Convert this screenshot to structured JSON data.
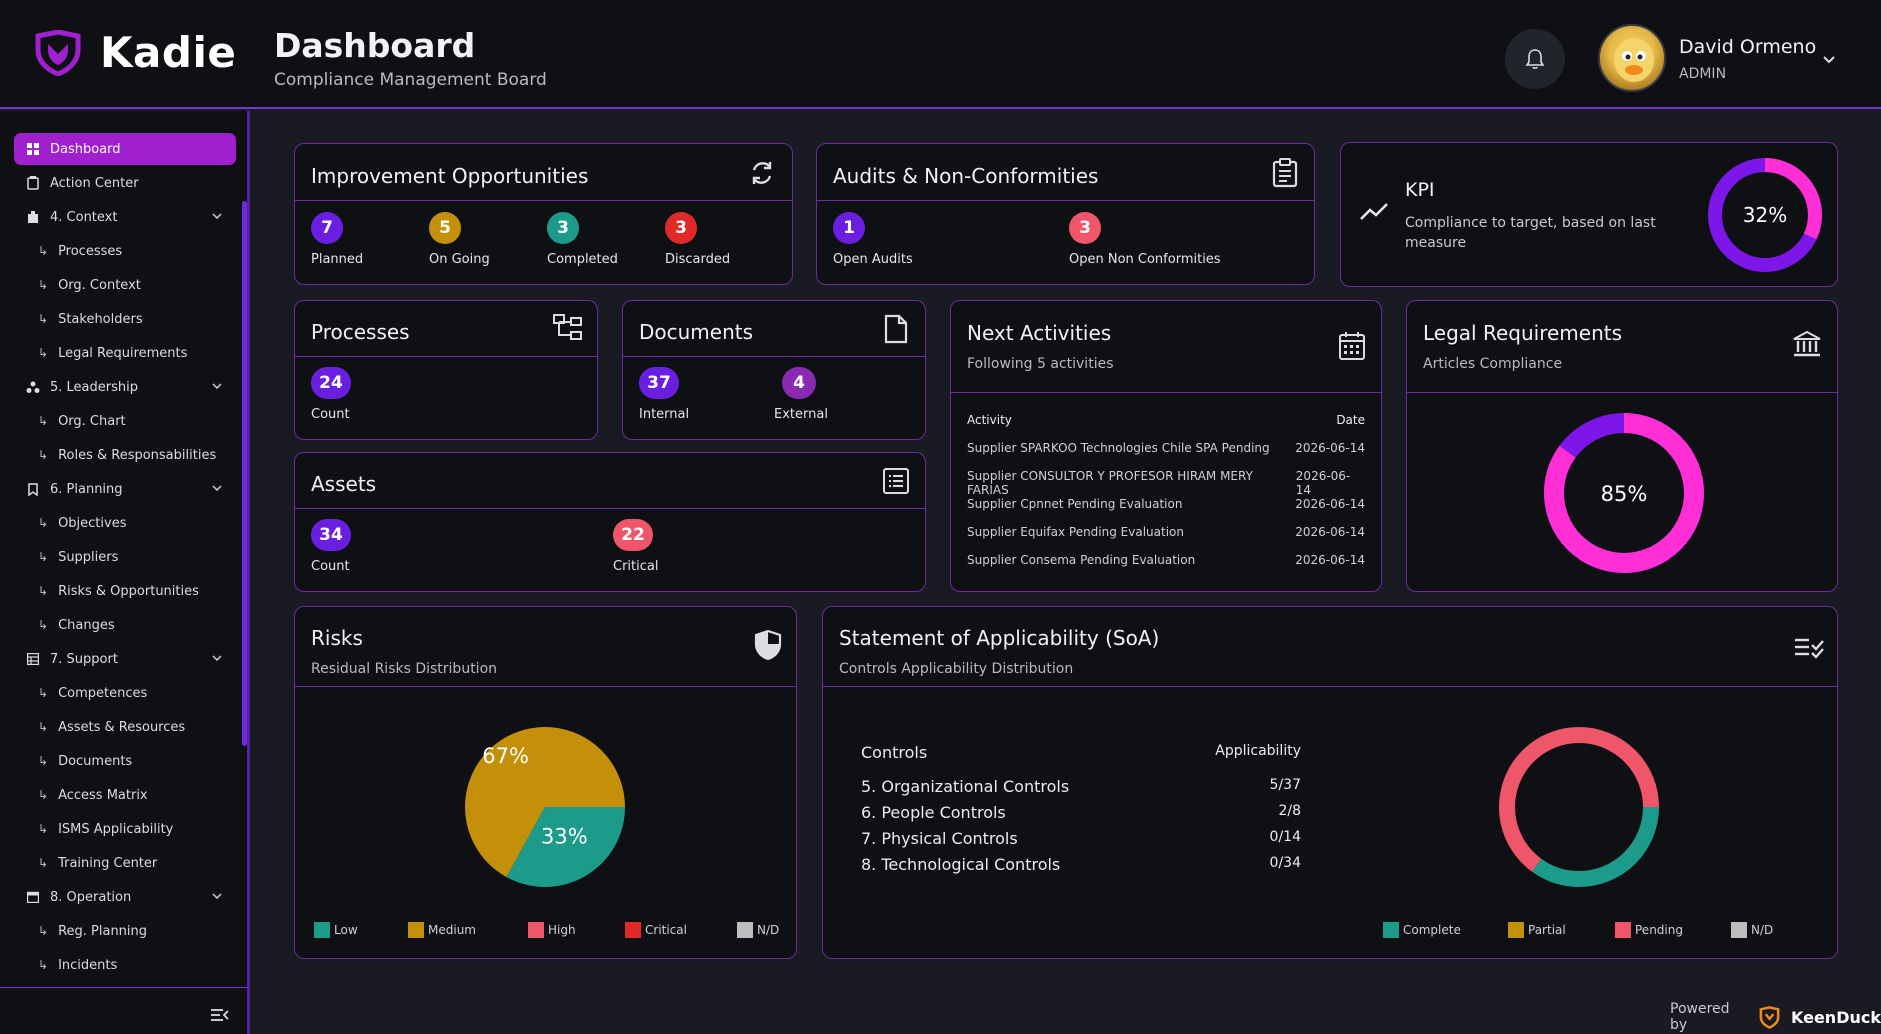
{
  "app": {
    "name": "Kadie"
  },
  "header": {
    "title": "Dashboard",
    "subtitle": "Compliance Management Board",
    "user_name": "David Ormeno",
    "user_role": "ADMIN"
  },
  "sidebar": {
    "items": [
      {
        "label": "Dashboard",
        "icon": "dashboard-icon"
      },
      {
        "label": "Action Center",
        "icon": "clipboard-icon"
      },
      {
        "label": "4. Context",
        "icon": "building-icon"
      },
      {
        "label": "Processes"
      },
      {
        "label": "Org. Context"
      },
      {
        "label": "Stakeholders"
      },
      {
        "label": "Legal Requirements"
      },
      {
        "label": "5. Leadership",
        "icon": "hierarchy-icon"
      },
      {
        "label": "Org. Chart"
      },
      {
        "label": "Roles & Responsabilities"
      },
      {
        "label": "6. Planning",
        "icon": "bookmark-icon"
      },
      {
        "label": "Objectives"
      },
      {
        "label": "Suppliers"
      },
      {
        "label": "Risks & Opportunities"
      },
      {
        "label": "Changes"
      },
      {
        "label": "7. Support",
        "icon": "grid-icon"
      },
      {
        "label": "Competences"
      },
      {
        "label": "Assets & Resources"
      },
      {
        "label": "Documents"
      },
      {
        "label": "Access Matrix"
      },
      {
        "label": "ISMS Applicability"
      },
      {
        "label": "Training Center"
      },
      {
        "label": "8. Operation",
        "icon": "calendar-icon"
      },
      {
        "label": "Reg. Planning"
      },
      {
        "label": "Incidents"
      }
    ]
  },
  "improvement": {
    "title": "Improvement Opportunities",
    "stats": [
      {
        "value": "7",
        "label": "Planned",
        "color": "#6a1fe0"
      },
      {
        "value": "5",
        "label": "On Going",
        "color": "#c4900a"
      },
      {
        "value": "3",
        "label": "Completed",
        "color": "#1d9b8a"
      },
      {
        "value": "3",
        "label": "Discarded",
        "color": "#e02a2a"
      }
    ]
  },
  "audits": {
    "title": "Audits & Non-Conformities",
    "stats": [
      {
        "value": "1",
        "label": "Open Audits",
        "color": "#6a1fe0"
      },
      {
        "value": "3",
        "label": "Open Non Conformities",
        "color": "#f0566a"
      }
    ]
  },
  "kpi": {
    "title": "KPI",
    "description": "Compliance to target, based on last measure",
    "value_label": "32%",
    "fraction": 0.32
  },
  "processes": {
    "title": "Processes",
    "value": "24",
    "label": "Count"
  },
  "documents": {
    "title": "Documents",
    "stats": [
      {
        "value": "37",
        "label": "Internal",
        "color": "#6a1fe0"
      },
      {
        "value": "4",
        "label": "External",
        "color": "#8a2ab0"
      }
    ]
  },
  "assets": {
    "title": "Assets",
    "stats": [
      {
        "value": "34",
        "label": "Count",
        "color": "#6a1fe0"
      },
      {
        "value": "22",
        "label": "Critical",
        "color": "#f0566a"
      }
    ]
  },
  "next_activities": {
    "title": "Next Activities",
    "subtitle": "Following 5 activities",
    "col_activity": "Activity",
    "col_date": "Date",
    "rows": [
      {
        "activity": "Supplier SPARKOO Technologies Chile SPA Pending",
        "date": "2026-06-14"
      },
      {
        "activity": "Supplier CONSULTOR Y PROFESOR HIRAM MERY FARÍAS",
        "date": "2026-06-14"
      },
      {
        "activity": "Supplier Cpnnet Pending Evaluation",
        "date": "2026-06-14"
      },
      {
        "activity": "Supplier Equifax Pending Evaluation",
        "date": "2026-06-14"
      },
      {
        "activity": "Supplier Consema Pending Evaluation",
        "date": "2026-06-14"
      }
    ]
  },
  "legal": {
    "title": "Legal Requirements",
    "subtitle": "Articles Compliance",
    "value_label": "85%",
    "fraction": 0.85
  },
  "risks": {
    "title": "Risks",
    "subtitle": "Residual Risks Distribution",
    "legend": [
      {
        "label": "Low",
        "color": "#1d9b8a"
      },
      {
        "label": "Medium",
        "color": "#c4900a"
      },
      {
        "label": "High",
        "color": "#f0566a"
      },
      {
        "label": "Critical",
        "color": "#e02a2a"
      },
      {
        "label": "N/D",
        "color": "#bdbdbd"
      }
    ]
  },
  "soa": {
    "title": "Statement of Applicability (SoA)",
    "subtitle": "Controls Applicability Distribution",
    "col_controls": "Controls",
    "col_applicability": "Applicability",
    "rows": [
      {
        "name": "5. Organizational Controls",
        "value": "5/37"
      },
      {
        "name": "6. People Controls",
        "value": "2/8"
      },
      {
        "name": "7. Physical Controls",
        "value": "0/14"
      },
      {
        "name": "8. Technological Controls",
        "value": "0/34"
      }
    ],
    "legend": [
      {
        "label": "Complete",
        "color": "#1d9b8a"
      },
      {
        "label": "Partial",
        "color": "#c4900a"
      },
      {
        "label": "Pending",
        "color": "#f0566a"
      },
      {
        "label": "N/D",
        "color": "#bdbdbd"
      }
    ]
  },
  "chart_data": [
    {
      "type": "pie",
      "categories": [
        "Medium",
        "Low"
      ],
      "values": [
        67,
        33
      ],
      "data_labels": [
        "67%",
        "33%"
      ]
    },
    {
      "type": "pie",
      "categories": [
        "Complete",
        "Pending"
      ],
      "values": [
        0.35,
        0.65
      ]
    }
  ],
  "footer": {
    "powered_by": "Powered by",
    "brand": "KeenDuck"
  }
}
